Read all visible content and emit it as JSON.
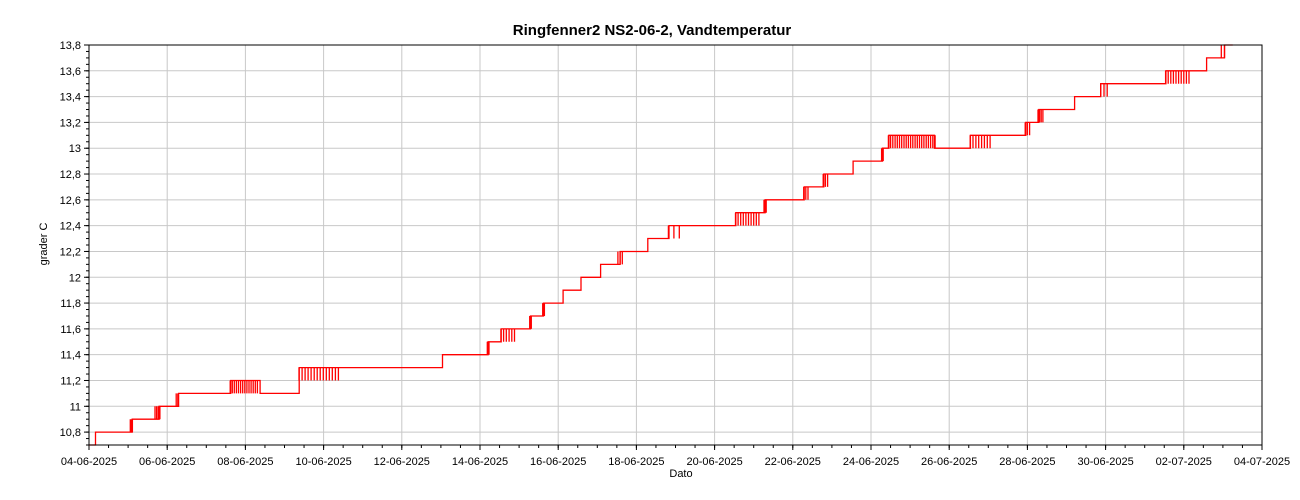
{
  "chart_data": {
    "type": "line",
    "title": "Ringfenner2 NS2-06-2, Vandtemperatur",
    "xlabel": "Dato",
    "ylabel": "grader C",
    "xlim": [
      "2025-06-04",
      "2025-07-04"
    ],
    "ylim": [
      10.7,
      13.8
    ],
    "grid": true,
    "legend": "none",
    "x_ticks": [
      "04-06-2025",
      "06-06-2025",
      "08-06-2025",
      "10-06-2025",
      "12-06-2025",
      "14-06-2025",
      "16-06-2025",
      "18-06-2025",
      "20-06-2025",
      "22-06-2025",
      "24-06-2025",
      "26-06-2025",
      "28-06-2025",
      "30-06-2025",
      "02-07-2025",
      "04-07-2025"
    ],
    "y_ticks": [
      "10,8",
      "11",
      "11,2",
      "11,4",
      "11,6",
      "11,8",
      "12",
      "12,2",
      "12,4",
      "12,6",
      "12,8",
      "13",
      "13,2",
      "13,4",
      "13,6",
      "13,8"
    ],
    "series": [
      {
        "color": "#ff0000",
        "points": [
          [
            "2025-06-04 00:00",
            10.7
          ],
          [
            "2025-06-04 04:00",
            10.8
          ],
          [
            "2025-06-05 02:00",
            10.8
          ],
          [
            "2025-06-05 02:30",
            10.9
          ],
          [
            "2025-06-05 18:00",
            10.9
          ],
          [
            "2025-06-05 19:00",
            11.0
          ],
          [
            "2025-06-06 06:00",
            11.0
          ],
          [
            "2025-06-06 07:00",
            11.1
          ],
          [
            "2025-06-07 14:00",
            11.1
          ],
          [
            "2025-06-07 15:00",
            11.2
          ],
          [
            "2025-06-08 08:00",
            11.2
          ],
          [
            "2025-06-08 09:00",
            11.1
          ],
          [
            "2025-06-09 08:00",
            11.1
          ],
          [
            "2025-06-09 09:00",
            11.3
          ],
          [
            "2025-06-12 23:00",
            11.3
          ],
          [
            "2025-06-13 01:00",
            11.4
          ],
          [
            "2025-06-14 04:00",
            11.4
          ],
          [
            "2025-06-14 05:00",
            11.5
          ],
          [
            "2025-06-14 12:00",
            11.5
          ],
          [
            "2025-06-14 13:00",
            11.6
          ],
          [
            "2025-06-15 06:00",
            11.6
          ],
          [
            "2025-06-15 07:00",
            11.7
          ],
          [
            "2025-06-15 14:00",
            11.7
          ],
          [
            "2025-06-15 15:00",
            11.8
          ],
          [
            "2025-06-16 02:00",
            11.8
          ],
          [
            "2025-06-16 03:00",
            11.9
          ],
          [
            "2025-06-16 13:00",
            11.9
          ],
          [
            "2025-06-16 14:00",
            12.0
          ],
          [
            "2025-06-17 01:00",
            12.0
          ],
          [
            "2025-06-17 02:00",
            12.1
          ],
          [
            "2025-06-17 13:00",
            12.1
          ],
          [
            "2025-06-17 14:00",
            12.2
          ],
          [
            "2025-06-18 06:00",
            12.2
          ],
          [
            "2025-06-18 07:00",
            12.3
          ],
          [
            "2025-06-18 19:00",
            12.3
          ],
          [
            "2025-06-18 20:00",
            12.4
          ],
          [
            "2025-06-20 12:00",
            12.4
          ],
          [
            "2025-06-20 13:00",
            12.5
          ],
          [
            "2025-06-21 06:00",
            12.5
          ],
          [
            "2025-06-21 07:00",
            12.6
          ],
          [
            "2025-06-22 06:00",
            12.6
          ],
          [
            "2025-06-22 07:00",
            12.7
          ],
          [
            "2025-06-22 18:00",
            12.7
          ],
          [
            "2025-06-22 19:00",
            12.8
          ],
          [
            "2025-06-23 12:00",
            12.8
          ],
          [
            "2025-06-23 13:00",
            12.9
          ],
          [
            "2025-06-24 06:00",
            12.9
          ],
          [
            "2025-06-24 07:00",
            13.0
          ],
          [
            "2025-06-24 10:00",
            13.0
          ],
          [
            "2025-06-24 11:00",
            13.1
          ],
          [
            "2025-06-25 14:00",
            13.1
          ],
          [
            "2025-06-25 15:00",
            13.0
          ],
          [
            "2025-06-26 12:00",
            13.0
          ],
          [
            "2025-06-26 13:00",
            13.1
          ],
          [
            "2025-06-27 22:00",
            13.1
          ],
          [
            "2025-06-27 23:00",
            13.2
          ],
          [
            "2025-06-28 06:00",
            13.2
          ],
          [
            "2025-06-28 07:00",
            13.3
          ],
          [
            "2025-06-29 04:00",
            13.3
          ],
          [
            "2025-06-29 05:00",
            13.4
          ],
          [
            "2025-06-29 20:00",
            13.4
          ],
          [
            "2025-06-29 21:00",
            13.5
          ],
          [
            "2025-07-01 12:00",
            13.5
          ],
          [
            "2025-07-01 13:00",
            13.6
          ],
          [
            "2025-07-02 13:00",
            13.6
          ],
          [
            "2025-07-02 14:00",
            13.7
          ],
          [
            "2025-07-03 00:00",
            13.7
          ],
          [
            "2025-07-03 01:00",
            13.8
          ],
          [
            "2025-07-03 06:00",
            13.8
          ]
        ],
        "oscillations": [
          {
            "start": "2025-06-05 01:00",
            "end": "2025-06-05 03:00",
            "low": 10.8,
            "high": 10.9,
            "count": 3
          },
          {
            "start": "2025-06-05 16:00",
            "end": "2025-06-05 20:00",
            "low": 10.9,
            "high": 11.0,
            "count": 4
          },
          {
            "start": "2025-06-06 05:00",
            "end": "2025-06-06 07:00",
            "low": 11.0,
            "high": 11.1,
            "count": 2
          },
          {
            "start": "2025-06-07 14:00",
            "end": "2025-06-08 08:00",
            "low": 11.1,
            "high": 11.2,
            "count": 14
          },
          {
            "start": "2025-06-09 08:00",
            "end": "2025-06-10 10:00",
            "low": 11.2,
            "high": 11.3,
            "count": 14
          },
          {
            "start": "2025-06-14 04:00",
            "end": "2025-06-14 06:00",
            "low": 11.4,
            "high": 11.5,
            "count": 2
          },
          {
            "start": "2025-06-14 12:00",
            "end": "2025-06-14 22:00",
            "low": 11.5,
            "high": 11.6,
            "count": 6
          },
          {
            "start": "2025-06-15 06:00",
            "end": "2025-06-15 08:00",
            "low": 11.6,
            "high": 11.7,
            "count": 2
          },
          {
            "start": "2025-06-15 14:00",
            "end": "2025-06-15 16:00",
            "low": 11.7,
            "high": 11.8,
            "count": 2
          },
          {
            "start": "2025-06-17 12:00",
            "end": "2025-06-17 16:00",
            "low": 12.1,
            "high": 12.2,
            "count": 3
          },
          {
            "start": "2025-06-18 18:00",
            "end": "2025-06-19 04:00",
            "low": 12.3,
            "high": 12.4,
            "count": 3
          },
          {
            "start": "2025-06-20 12:00",
            "end": "2025-06-21 04:00",
            "low": 12.4,
            "high": 12.5,
            "count": 10
          },
          {
            "start": "2025-06-21 06:00",
            "end": "2025-06-21 08:00",
            "low": 12.5,
            "high": 12.6,
            "count": 3
          },
          {
            "start": "2025-06-22 06:00",
            "end": "2025-06-22 10:00",
            "low": 12.6,
            "high": 12.7,
            "count": 3
          },
          {
            "start": "2025-06-22 18:00",
            "end": "2025-06-22 22:00",
            "low": 12.7,
            "high": 12.8,
            "count": 3
          },
          {
            "start": "2025-06-24 06:00",
            "end": "2025-06-24 08:00",
            "low": 12.9,
            "high": 13.0,
            "count": 2
          },
          {
            "start": "2025-06-24 10:00",
            "end": "2025-06-25 16:00",
            "low": 13.0,
            "high": 13.1,
            "count": 22
          },
          {
            "start": "2025-06-26 12:00",
            "end": "2025-06-27 02:00",
            "low": 13.0,
            "high": 13.1,
            "count": 8
          },
          {
            "start": "2025-06-27 22:00",
            "end": "2025-06-28 02:00",
            "low": 13.1,
            "high": 13.2,
            "count": 3
          },
          {
            "start": "2025-06-28 06:00",
            "end": "2025-06-28 10:00",
            "low": 13.2,
            "high": 13.3,
            "count": 4
          },
          {
            "start": "2025-06-29 20:00",
            "end": "2025-06-30 02:00",
            "low": 13.4,
            "high": 13.5,
            "count": 3
          },
          {
            "start": "2025-07-01 12:00",
            "end": "2025-07-02 04:00",
            "low": 13.5,
            "high": 13.6,
            "count": 10
          },
          {
            "start": "2025-07-02 22:00",
            "end": "2025-07-03 02:00",
            "low": 13.7,
            "high": 13.8,
            "count": 2
          }
        ]
      }
    ]
  }
}
